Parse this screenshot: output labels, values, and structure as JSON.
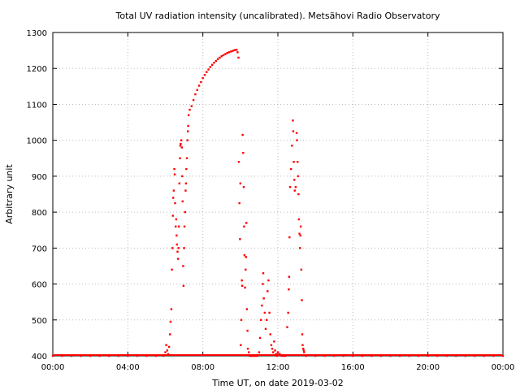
{
  "chart_data": {
    "type": "scatter",
    "title": "Total UV radiation intensity (uncalibrated). Metsähovi Radio Observatory",
    "xlabel": "Time UT, on date 2019-03-02",
    "ylabel": "Arbitrary unit",
    "x_unit": "hours UT",
    "xlim": [
      0,
      24
    ],
    "ylim": [
      400,
      1300
    ],
    "grid": true,
    "legend": "none",
    "marker_color": "#ff0000",
    "grid_color": "#bbbbbb",
    "x_ticks": [
      {
        "value": 0,
        "label": "00:00"
      },
      {
        "value": 4,
        "label": "04:00"
      },
      {
        "value": 8,
        "label": "08:00"
      },
      {
        "value": 12,
        "label": "12:00"
      },
      {
        "value": 16,
        "label": "16:00"
      },
      {
        "value": 20,
        "label": "20:00"
      },
      {
        "value": 24,
        "label": "00:00"
      }
    ],
    "y_ticks": [
      {
        "value": 400,
        "label": "400"
      },
      {
        "value": 500,
        "label": "500"
      },
      {
        "value": 600,
        "label": "600"
      },
      {
        "value": 700,
        "label": "700"
      },
      {
        "value": 800,
        "label": "800"
      },
      {
        "value": 900,
        "label": "900"
      },
      {
        "value": 1000,
        "label": "1000"
      },
      {
        "value": 1100,
        "label": "1100"
      },
      {
        "value": 1200,
        "label": "1200"
      },
      {
        "value": 1300,
        "label": "1300"
      }
    ],
    "series": [
      {
        "points": [
          [
            0.0,
            400
          ],
          [
            0.5,
            400
          ],
          [
            1.0,
            400
          ],
          [
            1.5,
            400
          ],
          [
            2.0,
            400
          ],
          [
            2.5,
            400
          ],
          [
            3.0,
            400
          ],
          [
            3.5,
            400
          ],
          [
            4.0,
            400
          ],
          [
            4.5,
            400
          ],
          [
            5.0,
            400
          ],
          [
            5.5,
            400
          ],
          [
            5.9,
            400
          ],
          [
            6.0,
            410
          ],
          [
            6.05,
            430
          ],
          [
            6.1,
            415
          ],
          [
            6.15,
            405
          ],
          [
            6.2,
            425
          ],
          [
            6.25,
            460
          ],
          [
            6.28,
            495
          ],
          [
            6.32,
            530
          ],
          [
            6.35,
            640
          ],
          [
            6.38,
            700
          ],
          [
            6.4,
            790
          ],
          [
            6.42,
            840
          ],
          [
            6.45,
            860
          ],
          [
            6.48,
            920
          ],
          [
            6.5,
            905
          ],
          [
            6.52,
            825
          ],
          [
            6.55,
            760
          ],
          [
            6.58,
            780
          ],
          [
            6.6,
            735
          ],
          [
            6.62,
            710
          ],
          [
            6.65,
            690
          ],
          [
            6.68,
            670
          ],
          [
            6.7,
            700
          ],
          [
            6.72,
            760
          ],
          [
            6.75,
            880
          ],
          [
            6.78,
            950
          ],
          [
            6.8,
            985
          ],
          [
            6.82,
            990
          ],
          [
            6.85,
            1000
          ],
          [
            6.88,
            980
          ],
          [
            6.9,
            900
          ],
          [
            6.92,
            830
          ],
          [
            6.95,
            650
          ],
          [
            6.97,
            595
          ],
          [
            7.0,
            700
          ],
          [
            7.02,
            760
          ],
          [
            7.05,
            800
          ],
          [
            7.08,
            860
          ],
          [
            7.1,
            880
          ],
          [
            7.12,
            920
          ],
          [
            7.15,
            950
          ],
          [
            7.18,
            1000
          ],
          [
            7.2,
            1025
          ],
          [
            7.22,
            1040
          ],
          [
            7.24,
            1070
          ],
          [
            7.3,
            1085
          ],
          [
            7.4,
            1095
          ],
          [
            7.5,
            1112
          ],
          [
            7.6,
            1128
          ],
          [
            7.7,
            1140
          ],
          [
            7.8,
            1152
          ],
          [
            7.9,
            1162
          ],
          [
            8.0,
            1173
          ],
          [
            8.1,
            1182
          ],
          [
            8.2,
            1190
          ],
          [
            8.3,
            1197
          ],
          [
            8.4,
            1204
          ],
          [
            8.5,
            1210
          ],
          [
            8.6,
            1216
          ],
          [
            8.7,
            1221
          ],
          [
            8.8,
            1226
          ],
          [
            8.9,
            1230
          ],
          [
            9.0,
            1234
          ],
          [
            9.1,
            1237
          ],
          [
            9.2,
            1240
          ],
          [
            9.3,
            1243
          ],
          [
            9.4,
            1245
          ],
          [
            9.5,
            1247
          ],
          [
            9.6,
            1249
          ],
          [
            9.7,
            1251
          ],
          [
            9.8,
            1252
          ],
          [
            9.85,
            1245
          ],
          [
            9.9,
            1230
          ],
          [
            9.92,
            940
          ],
          [
            9.95,
            825
          ],
          [
            9.98,
            725
          ],
          [
            10.0,
            880
          ],
          [
            10.02,
            430
          ],
          [
            10.05,
            500
          ],
          [
            10.08,
            610
          ],
          [
            10.1,
            595
          ],
          [
            10.12,
            1015
          ],
          [
            10.15,
            965
          ],
          [
            10.18,
            870
          ],
          [
            10.2,
            760
          ],
          [
            10.22,
            680
          ],
          [
            10.25,
            590
          ],
          [
            10.28,
            640
          ],
          [
            10.3,
            675
          ],
          [
            10.32,
            770
          ],
          [
            10.35,
            530
          ],
          [
            10.38,
            470
          ],
          [
            10.4,
            420
          ],
          [
            10.45,
            410
          ],
          [
            10.5,
            400
          ],
          [
            10.6,
            400
          ],
          [
            10.7,
            400
          ],
          [
            10.8,
            400
          ],
          [
            10.9,
            400
          ],
          [
            11.0,
            410
          ],
          [
            11.05,
            450
          ],
          [
            11.1,
            500
          ],
          [
            11.15,
            540
          ],
          [
            11.2,
            600
          ],
          [
            11.22,
            630
          ],
          [
            11.25,
            560
          ],
          [
            11.3,
            520
          ],
          [
            11.35,
            475
          ],
          [
            11.4,
            500
          ],
          [
            11.45,
            580
          ],
          [
            11.5,
            610
          ],
          [
            11.55,
            520
          ],
          [
            11.6,
            460
          ],
          [
            11.65,
            430
          ],
          [
            11.7,
            420
          ],
          [
            11.75,
            410
          ],
          [
            11.8,
            440
          ],
          [
            11.85,
            415
          ],
          [
            11.9,
            405
          ],
          [
            11.95,
            400
          ],
          [
            12.0,
            410
          ],
          [
            12.1,
            405
          ],
          [
            12.2,
            400
          ],
          [
            12.3,
            400
          ],
          [
            12.4,
            400
          ],
          [
            12.5,
            480
          ],
          [
            12.55,
            520
          ],
          [
            12.58,
            585
          ],
          [
            12.6,
            620
          ],
          [
            12.62,
            730
          ],
          [
            12.65,
            870
          ],
          [
            12.7,
            920
          ],
          [
            12.75,
            985
          ],
          [
            12.8,
            1055
          ],
          [
            12.82,
            1025
          ],
          [
            12.85,
            940
          ],
          [
            12.88,
            890
          ],
          [
            12.9,
            860
          ],
          [
            12.95,
            870
          ],
          [
            13.0,
            1020
          ],
          [
            13.02,
            1000
          ],
          [
            13.05,
            940
          ],
          [
            13.08,
            900
          ],
          [
            13.1,
            850
          ],
          [
            13.12,
            780
          ],
          [
            13.15,
            740
          ],
          [
            13.18,
            700
          ],
          [
            13.2,
            735
          ],
          [
            13.22,
            760
          ],
          [
            13.25,
            640
          ],
          [
            13.28,
            555
          ],
          [
            13.3,
            460
          ],
          [
            13.32,
            430
          ],
          [
            13.35,
            420
          ],
          [
            13.38,
            415
          ],
          [
            13.4,
            410
          ],
          [
            13.5,
            400
          ],
          [
            14.0,
            400
          ],
          [
            14.5,
            400
          ],
          [
            15.0,
            400
          ],
          [
            15.5,
            400
          ],
          [
            16.0,
            400
          ],
          [
            16.5,
            400
          ],
          [
            17.0,
            400
          ],
          [
            17.5,
            400
          ],
          [
            18.0,
            400
          ],
          [
            18.5,
            400
          ],
          [
            19.0,
            400
          ],
          [
            19.5,
            400
          ],
          [
            20.0,
            400
          ],
          [
            20.5,
            400
          ],
          [
            21.0,
            400
          ],
          [
            21.5,
            400
          ],
          [
            22.0,
            400
          ],
          [
            22.5,
            400
          ],
          [
            23.0,
            400
          ],
          [
            23.5,
            400
          ],
          [
            24.0,
            400
          ]
        ]
      }
    ]
  }
}
